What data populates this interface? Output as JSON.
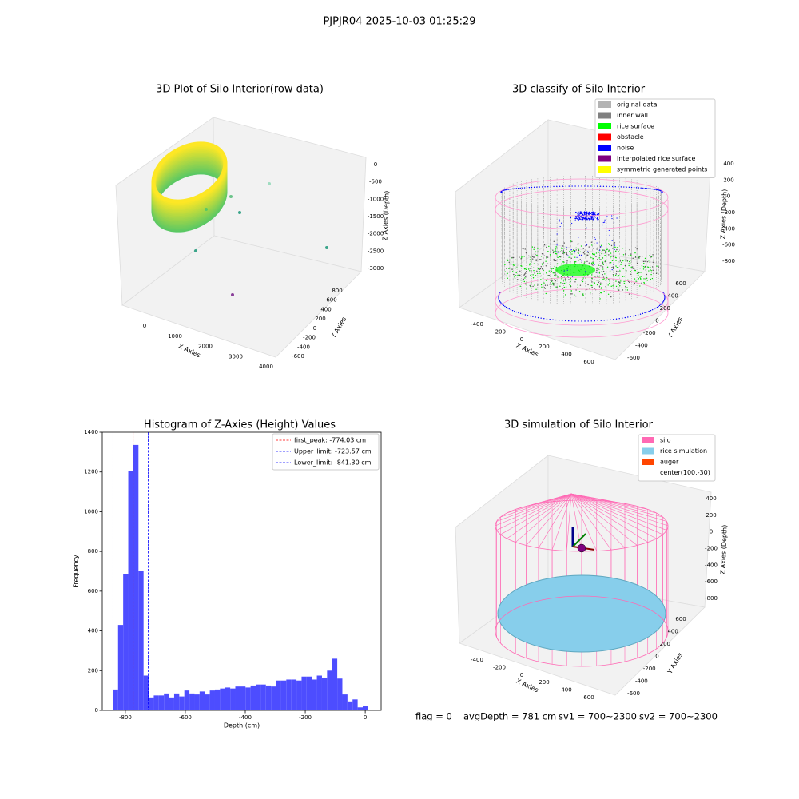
{
  "title": "PJPJR04 2025-10-03 01:25:29",
  "chart_data": [
    {
      "type": "scatter3d",
      "title": "3D Plot of Silo Interior(row data)",
      "xlabel": "X Axies",
      "ylabel": "Y Axies",
      "zlabel": "Z Axies (Depth)",
      "xticks": [
        0,
        1000,
        2000,
        3000,
        4000
      ],
      "yticks": [
        -600,
        -400,
        -200,
        0,
        200,
        400,
        600,
        800
      ],
      "zticks": [
        0,
        -500,
        -1000,
        -1500,
        -2000,
        -2500,
        -3000
      ]
    },
    {
      "type": "scatter3d",
      "title": "3D classify of Silo Interior",
      "xlabel": "X Axies",
      "ylabel": "Y Axies",
      "zlabel": "Z Axies (Depth)",
      "xticks": [
        -400,
        -200,
        0,
        200,
        400,
        600
      ],
      "yticks": [
        -600,
        -400,
        -200,
        0,
        200,
        400,
        600
      ],
      "zticks": [
        400,
        200,
        0,
        -200,
        -400,
        -600,
        -800
      ],
      "series": [
        {
          "name": "original data",
          "color": "#b3b3b3"
        },
        {
          "name": "inner wall",
          "color": "#808080"
        },
        {
          "name": "rice surface",
          "color": "#00ff00"
        },
        {
          "name": "obstacle",
          "color": "#ff0000"
        },
        {
          "name": "noise",
          "color": "#0000ff"
        },
        {
          "name": "interpolated rice surface",
          "color": "#800080"
        },
        {
          "name": "symmetric generated points",
          "color": "#ffff00"
        }
      ]
    },
    {
      "type": "histogram",
      "title": "Histogram of Z-Axies (Height) Values",
      "xlabel": "Depth (cm)",
      "ylabel": "Frequency",
      "color": "#4d4dff",
      "bins": [
        -841.3,
        -824.3,
        -807.3,
        -790.3,
        -773.3,
        -756.3,
        -739.3,
        -722.3,
        -705.3,
        -688.3,
        -671.3,
        -654.3,
        -637.3,
        -620.3,
        -603.3,
        -586.3,
        -569.3,
        -552.3,
        -535.3,
        -518.3,
        -501.3,
        -484.3,
        -467.3,
        -450.3,
        -433.3,
        -416.3,
        -399.3,
        -382.3,
        -365.3,
        -348.3,
        -331.3,
        -314.3,
        -297.3,
        -280.3,
        -263.3,
        -246.3,
        -229.3,
        -212.3,
        -195.3,
        -178.3,
        -161.3,
        -144.3,
        -127.3,
        -110.3,
        -93.3,
        -76.3,
        -59.3,
        -42.3,
        -25.3,
        -8.3,
        8.7
      ],
      "values": [
        105,
        430,
        685,
        1205,
        1336,
        700,
        175,
        65,
        75,
        75,
        85,
        65,
        85,
        70,
        100,
        85,
        80,
        95,
        80,
        100,
        105,
        110,
        115,
        110,
        120,
        120,
        115,
        125,
        130,
        130,
        125,
        120,
        150,
        150,
        155,
        155,
        150,
        170,
        170,
        155,
        175,
        165,
        200,
        260,
        160,
        80,
        45,
        55,
        15,
        20
      ],
      "xlim": [
        -877,
        53
      ],
      "ylim": [
        0,
        1400
      ],
      "xticks": [
        -800,
        -600,
        -400,
        -200,
        0
      ],
      "yticks": [
        0,
        200,
        400,
        600,
        800,
        1000,
        1200,
        1400
      ],
      "vlines": [
        {
          "name": "first_peak: -774.03 cm",
          "value": -774.03,
          "color": "#ff0000"
        },
        {
          "name": "Upper_limit: -723.57 cm",
          "value": -723.57,
          "color": "#0000ff"
        },
        {
          "name": "Lower_limit: -841.30 cm",
          "value": -841.3,
          "color": "#0000ff"
        }
      ],
      "legend": "upper right"
    },
    {
      "type": "scatter3d",
      "title": "3D simulation of Silo Interior",
      "xlabel": "X Axies",
      "ylabel": "Y Axies",
      "zlabel": "Z Axies (Depth)",
      "xticks": [
        -400,
        -200,
        0,
        200,
        400,
        600
      ],
      "yticks": [
        -600,
        -400,
        -200,
        0,
        200,
        400,
        600
      ],
      "zticks": [
        400,
        200,
        0,
        -200,
        -400,
        -600,
        -800
      ],
      "series": [
        {
          "name": "silo",
          "color": "#ff69b4"
        },
        {
          "name": "rice simulation",
          "color": "#87ceeb"
        },
        {
          "name": "auger",
          "color": "#ff4500"
        },
        {
          "name": "center(100,-30)",
          "color": "#ffffff"
        }
      ]
    }
  ],
  "annotations": [
    "flag = 0",
    "avgDepth = 781 cm",
    "sv1 = 700~2300",
    "sv2 = 700~2300"
  ]
}
